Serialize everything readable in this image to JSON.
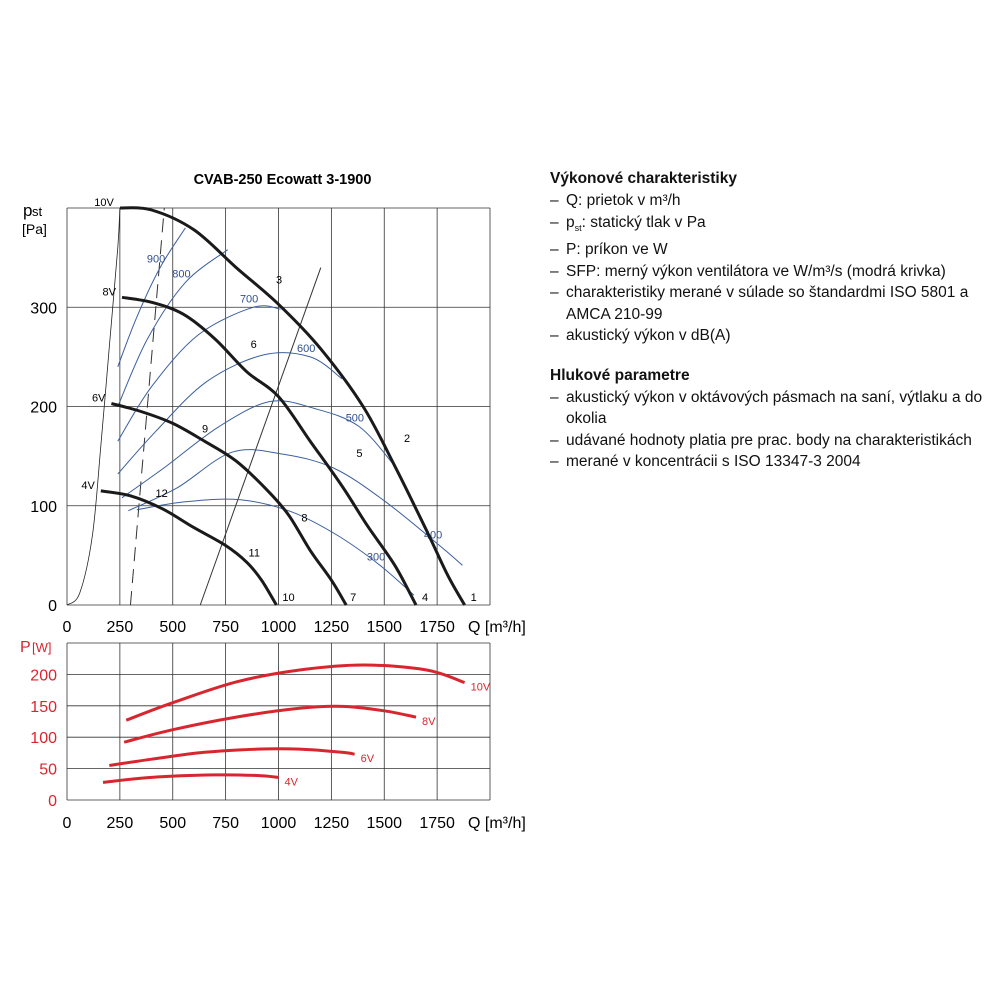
{
  "chart_data": [
    {
      "type": "line",
      "title": "CVAB-250 Ecowatt 3-1900",
      "ylabel_main": "p",
      "ylabel_sub": "st",
      "yunit": "[Pa]",
      "xlabel": "Q [m³/h]",
      "xlim": [
        0,
        2000
      ],
      "ylim": [
        0,
        400
      ],
      "xticks": [
        0,
        250,
        500,
        750,
        1000,
        1250,
        1500,
        1750
      ],
      "yticks": [
        0,
        100,
        200,
        300
      ],
      "grid": true,
      "voltage_curves": [
        {
          "name": "10V",
          "points": [
            [
              250,
              400
            ],
            [
              400,
              398
            ],
            [
              600,
              378
            ],
            [
              800,
              340
            ],
            [
              1000,
              303
            ],
            [
              1200,
              258
            ],
            [
              1400,
              200
            ],
            [
              1550,
              140
            ],
            [
              1700,
              75
            ],
            [
              1800,
              30
            ],
            [
              1880,
              0
            ]
          ]
        },
        {
          "name": "8V",
          "points": [
            [
              260,
              310
            ],
            [
              400,
              305
            ],
            [
              550,
              293
            ],
            [
              700,
              268
            ],
            [
              850,
              235
            ],
            [
              1000,
              210
            ],
            [
              1150,
              165
            ],
            [
              1300,
              120
            ],
            [
              1420,
              80
            ],
            [
              1550,
              40
            ],
            [
              1650,
              0
            ]
          ]
        },
        {
          "name": "6V",
          "points": [
            [
              210,
              203
            ],
            [
              350,
              195
            ],
            [
              500,
              183
            ],
            [
              650,
              165
            ],
            [
              800,
              145
            ],
            [
              950,
              115
            ],
            [
              1050,
              90
            ],
            [
              1150,
              55
            ],
            [
              1250,
              25
            ],
            [
              1320,
              0
            ]
          ]
        },
        {
          "name": "4V",
          "points": [
            [
              160,
              115
            ],
            [
              300,
              110
            ],
            [
              450,
              97
            ],
            [
              600,
              78
            ],
            [
              750,
              60
            ],
            [
              850,
              43
            ],
            [
              920,
              25
            ],
            [
              990,
              0
            ]
          ]
        }
      ],
      "sfp_curves": [
        {
          "name": "900",
          "points": [
            [
              240,
              240
            ],
            [
              330,
              290
            ],
            [
              440,
              340
            ],
            [
              560,
              380
            ]
          ]
        },
        {
          "name": "800",
          "points": [
            [
              240,
              200
            ],
            [
              380,
              268
            ],
            [
              560,
              325
            ],
            [
              760,
              358
            ]
          ]
        },
        {
          "name": "700",
          "points": [
            [
              240,
              165
            ],
            [
              400,
              220
            ],
            [
              620,
              272
            ],
            [
              880,
              300
            ],
            [
              1010,
              298
            ]
          ]
        },
        {
          "name": "600",
          "points": [
            [
              240,
              132
            ],
            [
              420,
              175
            ],
            [
              660,
              225
            ],
            [
              930,
              252
            ],
            [
              1150,
              250
            ],
            [
              1300,
              228
            ]
          ]
        },
        {
          "name": "500",
          "points": [
            [
              260,
              108
            ],
            [
              470,
              140
            ],
            [
              720,
              180
            ],
            [
              960,
              205
            ],
            [
              1170,
              198
            ],
            [
              1380,
              180
            ],
            [
              1550,
              140
            ]
          ]
        },
        {
          "name": "400",
          "points": [
            [
              290,
              95
            ],
            [
              520,
              118
            ],
            [
              780,
              154
            ],
            [
              1020,
              152
            ],
            [
              1260,
              138
            ],
            [
              1500,
              105
            ],
            [
              1750,
              62
            ],
            [
              1870,
              40
            ]
          ]
        },
        {
          "name": "300",
          "points": [
            [
              330,
              96
            ],
            [
              560,
              104
            ],
            [
              820,
              106
            ],
            [
              1060,
              94
            ],
            [
              1280,
              70
            ],
            [
              1480,
              40
            ],
            [
              1640,
              10
            ]
          ]
        }
      ],
      "system_lines": [
        {
          "from": [
            300,
            0
          ],
          "to": [
            460,
            400
          ],
          "dashed": true
        },
        {
          "from": [
            630,
            0
          ],
          "to": [
            1200,
            340
          ],
          "dashed": false
        }
      ],
      "working_points": [
        {
          "label": "1",
          "x": 1880,
          "y": 0
        },
        {
          "label": "2",
          "x": 1565,
          "y": 160
        },
        {
          "label": "3",
          "x": 960,
          "y": 320
        },
        {
          "label": "4",
          "x": 1650,
          "y": 0
        },
        {
          "label": "5",
          "x": 1340,
          "y": 145
        },
        {
          "label": "6",
          "x": 840,
          "y": 255
        },
        {
          "label": "7",
          "x": 1310,
          "y": 0
        },
        {
          "label": "8",
          "x": 1080,
          "y": 80
        },
        {
          "label": "9",
          "x": 610,
          "y": 170
        },
        {
          "label": "10",
          "x": 990,
          "y": 0
        },
        {
          "label": "11",
          "x": 830,
          "y": 45
        },
        {
          "label": "12",
          "x": 390,
          "y": 105
        }
      ],
      "voltage_labels": [
        "10V",
        "8V",
        "6V",
        "4V"
      ]
    },
    {
      "type": "line",
      "ylabel": "P",
      "yunit": "[W]",
      "xlabel": "Q [m³/h]",
      "xlim": [
        0,
        2000
      ],
      "ylim": [
        0,
        250
      ],
      "xticks": [
        0,
        250,
        500,
        750,
        1000,
        1250,
        1500,
        1750
      ],
      "yticks": [
        0,
        50,
        100,
        150,
        200
      ],
      "grid": true,
      "series": [
        {
          "name": "10V",
          "points": [
            [
              280,
              127
            ],
            [
              500,
              155
            ],
            [
              800,
              188
            ],
            [
              1100,
              207
            ],
            [
              1400,
              215
            ],
            [
              1700,
              207
            ],
            [
              1880,
              187
            ]
          ]
        },
        {
          "name": "8V",
          "points": [
            [
              270,
              92
            ],
            [
              500,
              112
            ],
            [
              800,
              132
            ],
            [
              1100,
              146
            ],
            [
              1300,
              149
            ],
            [
              1500,
              142
            ],
            [
              1650,
              132
            ]
          ]
        },
        {
          "name": "6V",
          "points": [
            [
              200,
              55
            ],
            [
              400,
              65
            ],
            [
              650,
              76
            ],
            [
              900,
              81
            ],
            [
              1100,
              81
            ],
            [
              1300,
              76
            ],
            [
              1360,
              73
            ]
          ]
        },
        {
          "name": "4V",
          "points": [
            [
              170,
              28
            ],
            [
              400,
              36
            ],
            [
              700,
              40
            ],
            [
              900,
              39
            ],
            [
              1000,
              36
            ]
          ]
        }
      ]
    }
  ],
  "legend_panel": {
    "heading1": "Výkonové charakteristiky",
    "items1": [
      "Q: prietok v m³/h",
      "pst: statický tlak v Pa",
      "P: príkon ve W",
      "SFP: merný výkon ventilátora ve W/m³/s (modrá krivka)",
      "charakteristiky merané v súlade so štandardmi ISO 5801 a AMCA 210-99",
      "akustický výkon v dB(A)"
    ],
    "heading2": "Hlukové parametre",
    "items2": [
      "akustický výkon v oktávových pásmach na saní, výtlaku a do okolia",
      "udávané hodnoty platia pre prac. body na charakteristikách",
      "merané v koncentrácii s ISO 13347-3 2004"
    ]
  },
  "colors": {
    "grid": "#333333",
    "voltage_curve": "#1a1a1a",
    "sfp_curve": "#3a5f9e",
    "sfp_label": "#2f4f8f",
    "power_curve": "#d8262f",
    "power_label": "#d8262f",
    "p_axis_label": "#d8262f"
  }
}
